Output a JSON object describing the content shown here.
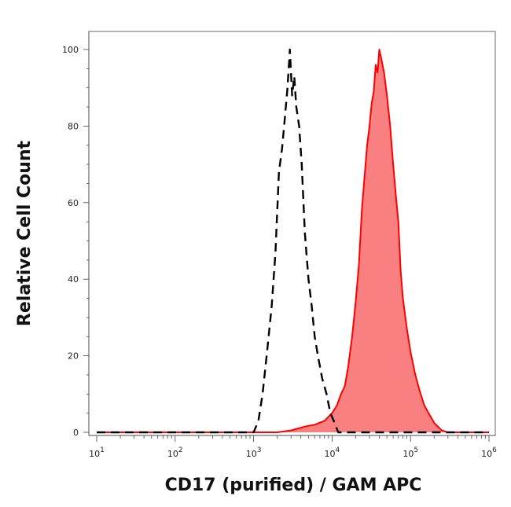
{
  "chart_data": {
    "type": "area",
    "xlabel": "CD17 (purified) / GAM APC",
    "ylabel": "Relative Cell Count",
    "x_scale": "log",
    "xlim": [
      10,
      1000000
    ],
    "ylim": [
      0,
      100
    ],
    "x_ticks": [
      {
        "value": 10,
        "base": "10",
        "exp": "1"
      },
      {
        "value": 100,
        "base": "10",
        "exp": "2"
      },
      {
        "value": 1000,
        "base": "10",
        "exp": "3"
      },
      {
        "value": 10000,
        "base": "10",
        "exp": "4"
      },
      {
        "value": 100000,
        "base": "10",
        "exp": "5"
      },
      {
        "value": 1000000,
        "base": "10",
        "exp": "6"
      }
    ],
    "y_ticks": [
      "0",
      "20",
      "40",
      "60",
      "80",
      "100"
    ],
    "grid": false,
    "series": [
      {
        "style": "dashed",
        "color": "#000000",
        "x": [
          10,
          100,
          1000,
          1150,
          1300,
          1500,
          1700,
          1900,
          2100,
          2300,
          2500,
          2700,
          2900,
          3100,
          3300,
          3500,
          3800,
          4100,
          4500,
          5000,
          5500,
          6000,
          6600,
          7500,
          8500,
          9500,
          10500,
          12000,
          20000,
          100000,
          1000000
        ],
        "y": [
          0,
          0,
          0,
          3,
          10,
          22,
          33,
          47,
          68,
          74,
          82,
          90,
          100,
          88,
          93,
          85,
          80,
          70,
          52,
          40,
          33,
          25,
          20,
          14,
          10,
          5,
          3,
          0,
          0,
          0,
          0
        ]
      },
      {
        "style": "filled",
        "color": "#ff0000",
        "fill": "#f98080",
        "x": [
          10,
          100,
          1000,
          2000,
          3000,
          4500,
          6000,
          8000,
          10000,
          11500,
          13000,
          14500,
          16000,
          18000,
          20000,
          22000,
          24000,
          26000,
          28000,
          30000,
          32000,
          34000,
          36000,
          38000,
          40000,
          43000,
          46000,
          50000,
          55000,
          60000,
          65000,
          70000,
          75000,
          80000,
          90000,
          100000,
          115000,
          130000,
          150000,
          170000,
          200000,
          250000,
          300000,
          1000000
        ],
        "y": [
          0,
          0,
          0,
          0,
          0.5,
          1.5,
          2,
          3,
          5,
          7,
          10,
          12,
          17,
          25,
          34,
          44,
          58,
          67,
          75,
          80,
          86,
          89,
          96,
          94,
          100,
          97,
          94,
          88,
          80,
          70,
          62,
          55,
          42,
          35,
          27,
          21,
          15,
          11,
          7,
          5,
          2.5,
          0.5,
          0,
          0
        ]
      }
    ]
  }
}
